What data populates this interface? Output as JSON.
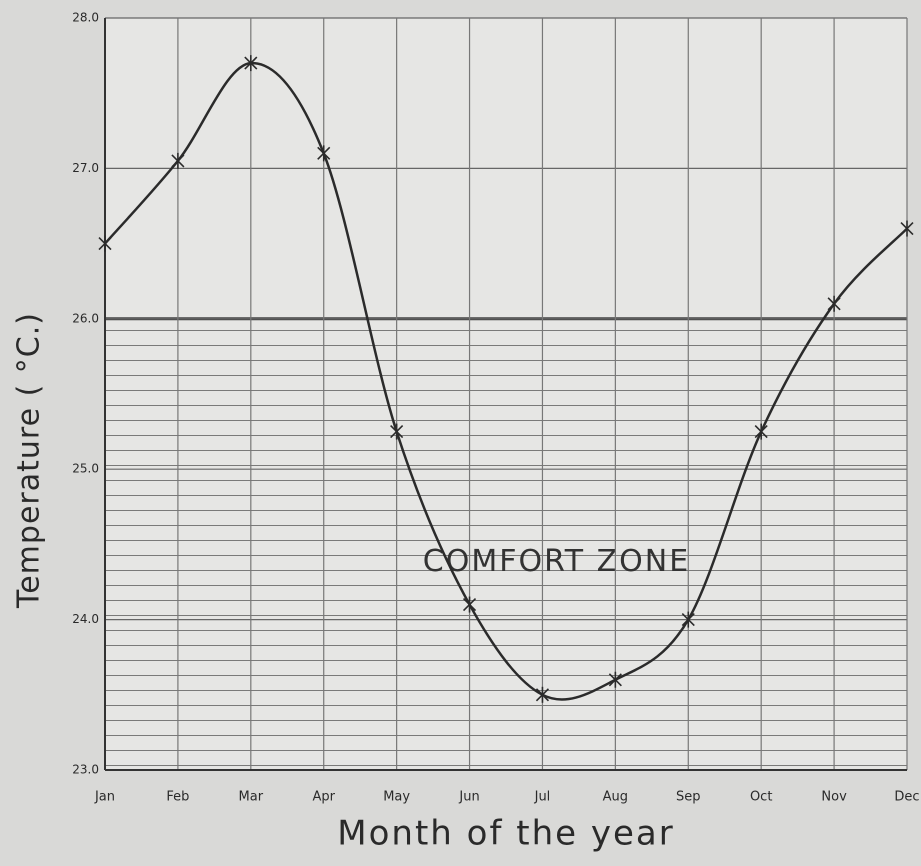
{
  "chart_data": {
    "type": "line",
    "x_label": "Month of the year",
    "y_label": "Temperature ( °C.)",
    "categories": [
      "Jan",
      "Feb",
      "Mar",
      "Apr",
      "May",
      "Jun",
      "Jul",
      "Aug",
      "Sep",
      "Oct",
      "Nov",
      "Dec"
    ],
    "values": [
      26.5,
      27.05,
      27.7,
      27.1,
      25.25,
      24.1,
      23.5,
      23.6,
      24.0,
      25.25,
      26.1,
      26.6
    ],
    "color": "#2b2b2b",
    "ylim": [
      23,
      28
    ],
    "yticks": [
      {
        "value": 23,
        "label": "23.0"
      },
      {
        "value": 24,
        "label": "24.0"
      },
      {
        "value": 25,
        "label": "25.0"
      },
      {
        "value": 26,
        "label": "26.0"
      },
      {
        "value": 27,
        "label": "27.0"
      },
      {
        "value": 28,
        "label": "28.0"
      }
    ],
    "grid": true,
    "bands": [
      {
        "label": "COMFORT ZONE",
        "from": 23,
        "to": 26
      }
    ]
  }
}
